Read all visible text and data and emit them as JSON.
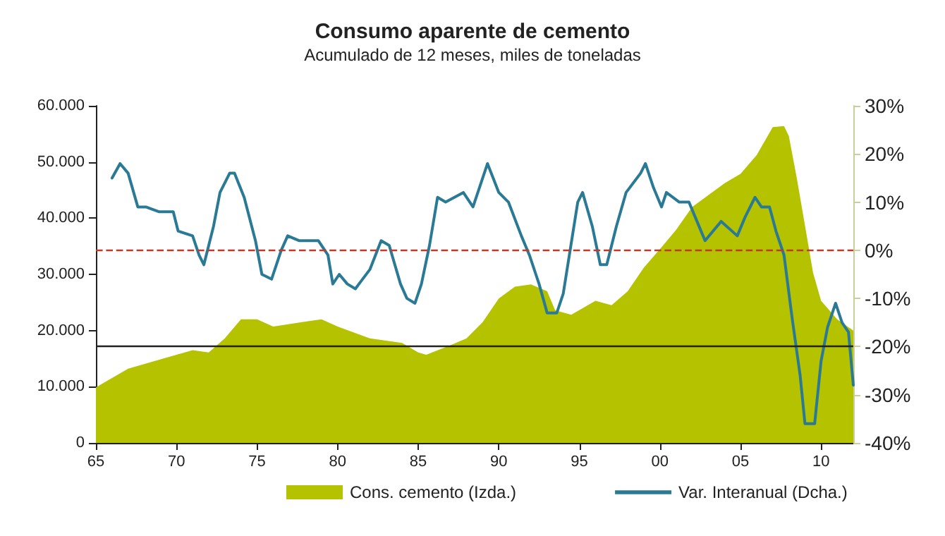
{
  "chart_data": {
    "type": "line",
    "title": "Consumo aparente de cemento",
    "subtitle": "Acumulado de 12 meses, miles de toneladas",
    "xlim": [
      1965,
      2012
    ],
    "xticks": [
      {
        "value": 1965,
        "label": "65"
      },
      {
        "value": 1970,
        "label": "70"
      },
      {
        "value": 1975,
        "label": "75"
      },
      {
        "value": 1980,
        "label": "80"
      },
      {
        "value": 1985,
        "label": "85"
      },
      {
        "value": 1990,
        "label": "90"
      },
      {
        "value": 1995,
        "label": "95"
      },
      {
        "value": 2000,
        "label": "00"
      },
      {
        "value": 2005,
        "label": "05"
      },
      {
        "value": 2010,
        "label": "10"
      }
    ],
    "ylim": [
      0,
      60000
    ],
    "yticks": [
      {
        "value": 0,
        "label": "0"
      },
      {
        "value": 10000,
        "label": "10.000"
      },
      {
        "value": 20000,
        "label": "20.000"
      },
      {
        "value": 30000,
        "label": "30.000"
      },
      {
        "value": 40000,
        "label": "40.000"
      },
      {
        "value": 50000,
        "label": "50.000"
      },
      {
        "value": 60000,
        "label": "60.000"
      }
    ],
    "y2lim": [
      -40,
      30
    ],
    "y2ticks": [
      {
        "value": -40,
        "label": "-40%"
      },
      {
        "value": -30,
        "label": "-30%"
      },
      {
        "value": -20,
        "label": "-20%"
      },
      {
        "value": -10,
        "label": "-10%"
      },
      {
        "value": 0,
        "label": "0%"
      },
      {
        "value": 10,
        "label": "10%"
      },
      {
        "value": 20,
        "label": "20%"
      },
      {
        "value": 30,
        "label": "30%"
      }
    ],
    "grid": false,
    "legend": "bottom",
    "marker": "none",
    "series": [
      {
        "name": "Cons. cemento (Izda.)",
        "type": "area",
        "color": "#b5c200",
        "x": [
          1965,
          1967,
          1970,
          1971,
          1972,
          1973,
          1974,
          1975,
          1976,
          1978,
          1979,
          1980,
          1982,
          1983,
          1984,
          1985,
          1985.5,
          1987,
          1988,
          1989,
          1990,
          1991,
          1992,
          1993,
          1993.5,
          1994.5,
          1996,
          1997,
          1998,
          1999,
          2000,
          2001,
          2002,
          2003,
          2004,
          2005,
          2006,
          2007,
          2007.7,
          2008,
          2008.5,
          2009,
          2009.5,
          2010,
          2011,
          2012
        ],
        "values": [
          9900,
          13200,
          15700,
          16500,
          16100,
          18600,
          22000,
          22000,
          20700,
          21600,
          22000,
          20700,
          18600,
          18200,
          17800,
          16100,
          15700,
          17400,
          18600,
          21500,
          25700,
          27800,
          28200,
          27000,
          23600,
          22800,
          25300,
          24500,
          27000,
          31200,
          34500,
          37900,
          42000,
          44100,
          46200,
          47900,
          51200,
          56200,
          56400,
          54600,
          47000,
          38700,
          30300,
          25300,
          22000,
          20000
        ]
      },
      {
        "name": "Var. Interanual (Dcha.)",
        "type": "line",
        "axis": "y2",
        "color": "#2b7a95",
        "line_style": "solid",
        "x": [
          1966,
          1966.5,
          1967,
          1967.6,
          1968.1,
          1968.9,
          1969.8,
          1970.1,
          1971,
          1971.4,
          1971.7,
          1972.3,
          1972.7,
          1973.3,
          1973.6,
          1974.2,
          1974.9,
          1975.3,
          1975.9,
          1976.5,
          1976.9,
          1977.6,
          1978.8,
          1979.4,
          1979.7,
          1980.1,
          1980.6,
          1981.1,
          1982,
          1982.7,
          1983.2,
          1983.9,
          1984.3,
          1984.8,
          1985.2,
          1985.7,
          1986.2,
          1986.7,
          1987.8,
          1988.4,
          1989.3,
          1990,
          1990.6,
          1991.4,
          1991.9,
          1992.5,
          1993,
          1993.6,
          1994,
          1994.9,
          1995.2,
          1995.8,
          1996.3,
          1996.7,
          1997.3,
          1997.9,
          1998.8,
          1999.1,
          1999.6,
          2000.1,
          2000.4,
          2001.2,
          2001.8,
          2002.3,
          2002.8,
          2003.8,
          2004.8,
          2005.3,
          2005.9,
          2006.3,
          2006.8,
          2007.2,
          2007.7,
          2008.2,
          2008.7,
          2009,
          2009.6,
          2010,
          2010.4,
          2010.9,
          2011.3,
          2011.7,
          2012
        ],
        "values": [
          15,
          18,
          16,
          9,
          9,
          8,
          8,
          4,
          3,
          -1,
          -3,
          5,
          12,
          16,
          16,
          11,
          2,
          -5,
          -6,
          0,
          3,
          2,
          2,
          -1,
          -7,
          -5,
          -7,
          -8,
          -4,
          2,
          1,
          -7,
          -10,
          -11,
          -7,
          1,
          11,
          10,
          12,
          9,
          18,
          12,
          10,
          3,
          -1,
          -7,
          -13,
          -13,
          -9,
          10,
          12,
          5,
          -3,
          -3,
          5,
          12,
          16,
          18,
          13,
          9,
          12,
          10,
          10,
          6,
          2,
          6,
          3,
          7,
          11,
          9,
          9,
          4,
          -1,
          -14,
          -26,
          -36,
          -36,
          -23,
          -16,
          -11,
          -15,
          -17,
          -28
        ]
      }
    ],
    "ref_lines": [
      {
        "axis": "y2",
        "value": 0,
        "color": "#c0392b",
        "line_style": "dashed"
      },
      {
        "axis": "y2",
        "value": -20,
        "color": "#222222",
        "line_style": "solid"
      }
    ]
  }
}
